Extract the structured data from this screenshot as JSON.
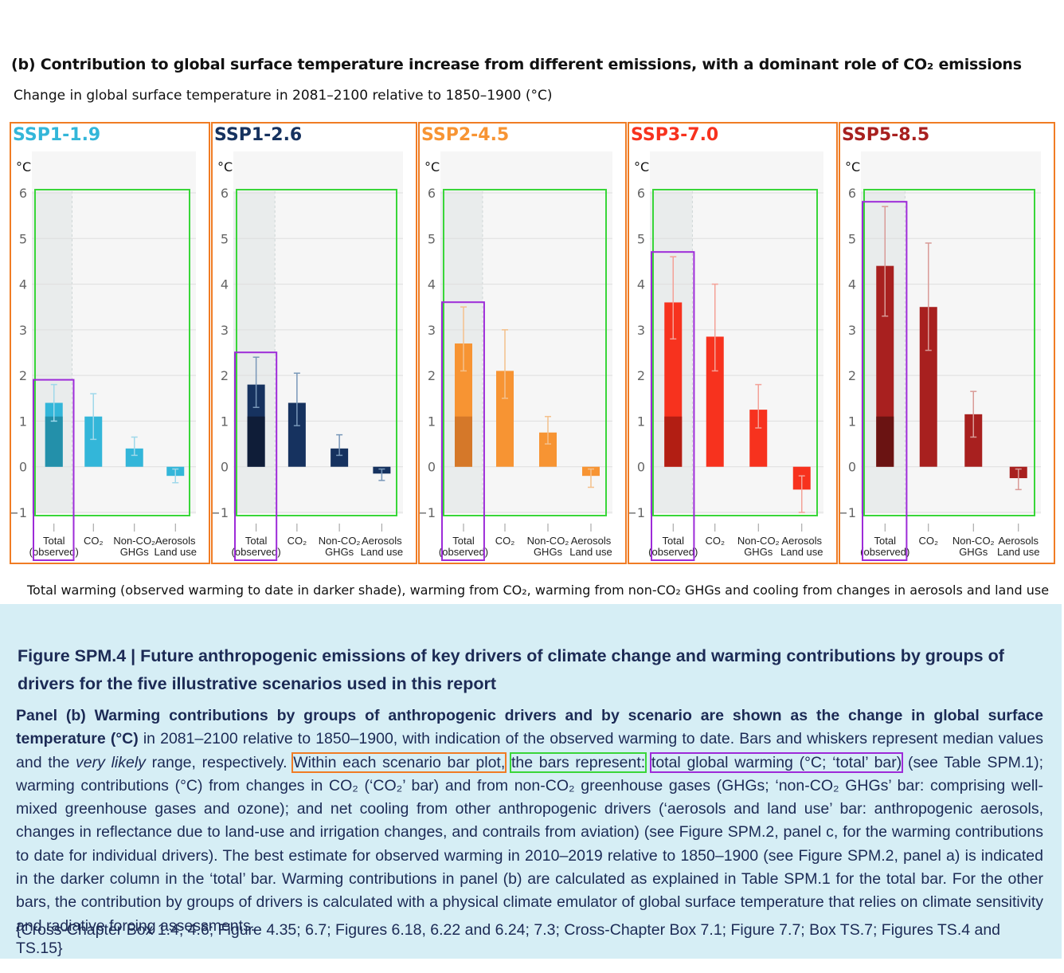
{
  "header": {
    "title": "(b) Contribution to global surface temperature increase from different emissions, with a dominant role of CO₂ emissions",
    "subtitle": "Change in global surface temperature in 2081–2100 relative to 1850–1900 (°C)"
  },
  "footer_caption": "Total warming (observed warming to date in darker shade), warming from CO₂, warming from non-CO₂ GHGs and cooling from changes in aerosols and land use",
  "chart_data": [
    {
      "type": "bar",
      "title": "SSP1-1.9",
      "ylabel": "°C",
      "ylim": [
        -1,
        6
      ],
      "yticks": [
        "6",
        "5",
        "4",
        "3",
        "2",
        "1",
        "0",
        "−1"
      ],
      "categories": [
        "Total (observed)",
        "CO₂",
        "Non-CO₂ GHGs",
        "Aerosols Land use"
      ],
      "values": [
        1.4,
        1.1,
        0.4,
        -0.2
      ],
      "error_low": [
        1.0,
        0.6,
        0.25,
        -0.35
      ],
      "error_high": [
        1.8,
        1.6,
        0.65,
        -0.05
      ],
      "observed": 1.1,
      "color": "#33b6d9",
      "dark_color": "#2390aa",
      "error_color": "#9fd8ea"
    },
    {
      "type": "bar",
      "title": "SSP1-2.6",
      "ylabel": "°C",
      "ylim": [
        -1,
        6
      ],
      "yticks": [
        "6",
        "5",
        "4",
        "3",
        "2",
        "1",
        "0",
        "−1"
      ],
      "categories": [
        "Total (observed)",
        "CO₂",
        "Non-CO₂ GHGs",
        "Aerosols Land use"
      ],
      "values": [
        1.8,
        1.4,
        0.4,
        -0.15
      ],
      "error_low": [
        1.3,
        0.9,
        0.25,
        -0.3
      ],
      "error_high": [
        2.4,
        2.05,
        0.7,
        -0.05
      ],
      "observed": 1.1,
      "color": "#16325f",
      "dark_color": "#0f1d38",
      "error_color": "#7897b8"
    },
    {
      "type": "bar",
      "title": "SSP2-4.5",
      "ylabel": "°C",
      "ylim": [
        -1,
        6
      ],
      "yticks": [
        "6",
        "5",
        "4",
        "3",
        "2",
        "1",
        "0",
        "−1"
      ],
      "categories": [
        "Total (observed)",
        "CO₂",
        "Non-CO₂ GHGs",
        "Aerosols Land use"
      ],
      "values": [
        2.7,
        2.1,
        0.75,
        -0.2
      ],
      "error_low": [
        2.1,
        1.5,
        0.5,
        -0.45
      ],
      "error_high": [
        3.5,
        3.0,
        1.1,
        -0.05
      ],
      "observed": 1.1,
      "color": "#f79433",
      "dark_color": "#d57829",
      "error_color": "#f4c08c"
    },
    {
      "type": "bar",
      "title": "SSP3-7.0",
      "ylabel": "°C",
      "ylim": [
        -1,
        6
      ],
      "yticks": [
        "6",
        "5",
        "4",
        "3",
        "2",
        "1",
        "0",
        "−1"
      ],
      "categories": [
        "Total (observed)",
        "CO₂",
        "Non-CO₂ GHGs",
        "Aerosols Land use"
      ],
      "values": [
        3.6,
        2.85,
        1.25,
        -0.5
      ],
      "error_low": [
        2.8,
        2.1,
        0.85,
        -1.0
      ],
      "error_high": [
        4.6,
        4.0,
        1.8,
        -0.2
      ],
      "observed": 1.1,
      "color": "#f7321e",
      "dark_color": "#b21e13",
      "error_color": "#f4a197"
    },
    {
      "type": "bar",
      "title": "SSP5-8.5",
      "ylabel": "°C",
      "ylim": [
        -1,
        6
      ],
      "yticks": [
        "6",
        "5",
        "4",
        "3",
        "2",
        "1",
        "0",
        "−1"
      ],
      "categories": [
        "Total (observed)",
        "CO₂",
        "Non-CO₂ GHGs",
        "Aerosols Land use"
      ],
      "values": [
        4.4,
        3.5,
        1.15,
        -0.25
      ],
      "error_low": [
        3.3,
        2.55,
        0.65,
        -0.5
      ],
      "error_high": [
        5.7,
        4.9,
        1.65,
        -0.05
      ],
      "observed": 1.1,
      "color": "#a8201f",
      "dark_color": "#6a1312",
      "error_color": "#d99b97"
    }
  ],
  "figure_caption": {
    "title": "Figure SPM.4 | Future anthropogenic emissions of key drivers of climate change and warming contributions by groups of drivers for the five illustrative scenarios used in this report",
    "body_bold": "Panel (b) Warming contributions by groups of anthropogenic drivers and by scenario are shown as the change in global surface temperature (°C)",
    "body_1": " in 2081–2100 relative to 1850–1900, with indication of the observed warming to date. Bars and whiskers represent median values and the ",
    "body_italic": "very likely",
    "body_2": " range, respectively.",
    "hl_orange": "Within each scenario bar plot,",
    "hl_green": "the bars represent:",
    "hl_purple": "total global warming (°C; ‘total’ bar)",
    "body_3": " (see Table SPM.1); warming contributions (°C) from changes in CO₂ (‘CO₂’ bar) and from non-CO₂ greenhouse gases (GHGs; ‘non-CO₂ GHGs’ bar: comprising well-mixed greenhouse gases and ozone); and net cooling from other anthropogenic drivers (‘aerosols and land use’ bar: anthropogenic aerosols, changes in reflectance due to land-use and irrigation changes, and contrails from aviation) (see Figure SPM.2, panel c, for the warming contributions to date for individual drivers). The best estimate for observed warming in 2010–2019 relative to 1850–1900 (see Figure SPM.2, panel a) is indicated in the darker column in the ‘total’ bar. Warming contributions in panel (b) are calculated as explained in Table SPM.1 for the total bar. For the other bars, the contribution by groups of drivers is calculated with a physical climate emulator of global surface temperature that relies on climate sensitivity and radiative forcing assessments.",
    "refs": "{Cross-Chapter Box 1.4; 4.6; Figure 4.35; 6.7; Figures 6.18, 6.22 and 6.24; 7.3; Cross-Chapter Box 7.1; Figure 7.7; Box TS.7; Figures TS.4 and TS.15}"
  }
}
